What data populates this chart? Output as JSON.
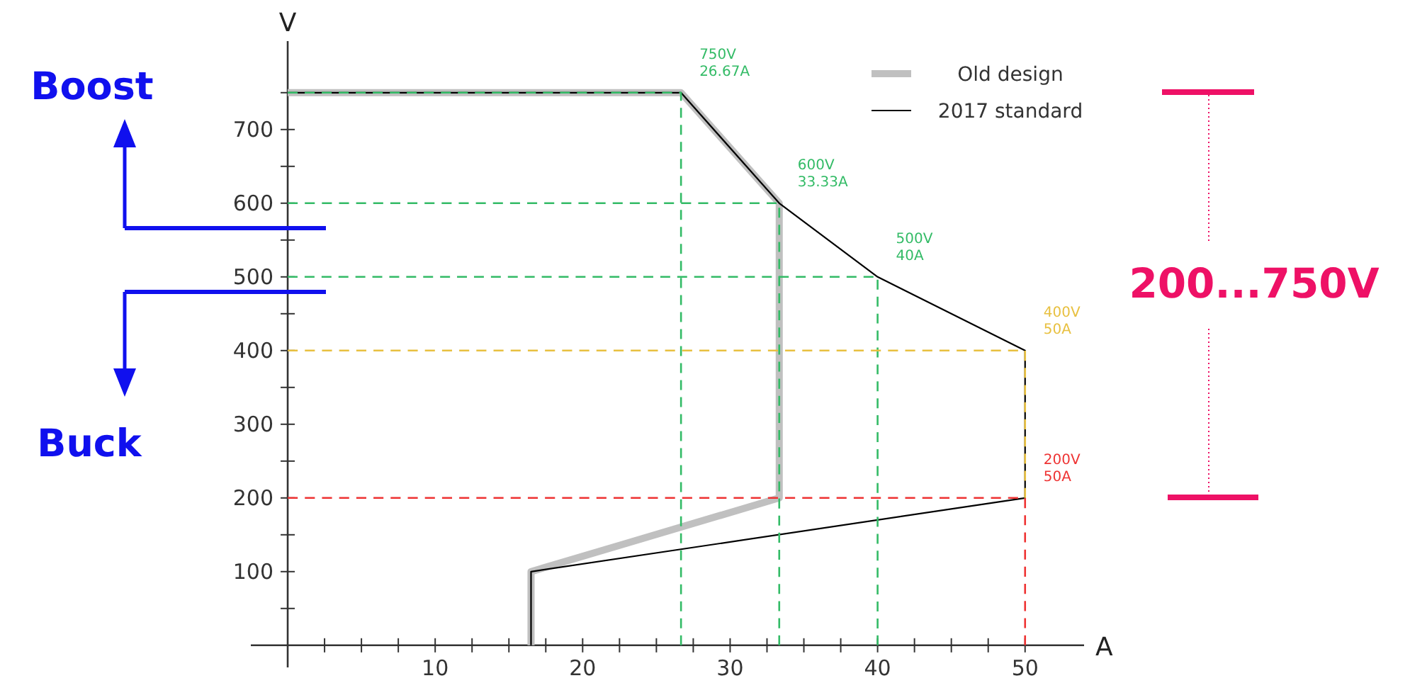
{
  "chart_data": {
    "type": "line",
    "xlabel": "A",
    "ylabel": "V",
    "xlim": [
      -2.5,
      54
    ],
    "ylim": [
      -30,
      820
    ],
    "xticks": [
      {
        "value": 2.5,
        "label": null
      },
      {
        "value": 5,
        "label": null
      },
      {
        "value": 7.5,
        "label": null
      },
      10,
      {
        "value": 12.5,
        "label": null
      },
      {
        "value": 15,
        "label": null
      },
      {
        "value": 17.5,
        "label": null
      },
      20,
      {
        "value": 22.5,
        "label": null
      },
      {
        "value": 25,
        "label": null
      },
      {
        "value": 27.5,
        "label": null
      },
      30,
      {
        "value": 32.5,
        "label": null
      },
      {
        "value": 35,
        "label": null
      },
      {
        "value": 37.5,
        "label": null
      },
      40,
      {
        "value": 42.5,
        "label": null
      },
      {
        "value": 45,
        "label": null
      },
      {
        "value": 47.5,
        "label": null
      },
      50
    ],
    "yticks": [
      {
        "value": 50,
        "label": null
      },
      100,
      {
        "value": 150,
        "label": null
      },
      200,
      {
        "value": 250,
        "label": null
      },
      300,
      {
        "value": 350,
        "label": null
      },
      400,
      {
        "value": 450,
        "label": null
      },
      500,
      {
        "value": 550,
        "label": null
      },
      600,
      {
        "value": 650,
        "label": null
      },
      700,
      {
        "value": 750,
        "label": null
      }
    ],
    "grid": false,
    "legend": "top right",
    "series": [
      {
        "name": "Old design",
        "color": "#c0c0c0",
        "x": [
          16.5,
          16.5,
          33.33,
          33.33,
          26.67,
          0
        ],
        "values": [
          0,
          100,
          200,
          600,
          750,
          750
        ]
      },
      {
        "name": "2017 standard",
        "color": "#000000",
        "x": [
          16.5,
          16.5,
          50,
          50,
          40,
          33.33,
          26.67,
          0
        ],
        "values": [
          0,
          100,
          200,
          400,
          500,
          600,
          750,
          750
        ]
      },
      {
        "color": "#33bb66",
        "line_style": "dashed",
        "x": [
          0,
          26.67,
          26.67
        ],
        "values": [
          750,
          750,
          0
        ]
      },
      {
        "color": "#33bb66",
        "line_style": "dashed",
        "x": [
          0,
          33.33,
          33.33
        ],
        "values": [
          600,
          600,
          0
        ]
      },
      {
        "color": "#33bb66",
        "line_style": "dashed",
        "x": [
          0,
          40,
          40
        ],
        "values": [
          500,
          500,
          0
        ]
      },
      {
        "color": "#e8c040",
        "line_style": "dashed",
        "x": [
          0,
          50,
          50
        ],
        "values": [
          400,
          400,
          200
        ]
      },
      {
        "color": "#ee3333",
        "line_style": "dashed",
        "x": [
          0,
          50,
          50
        ],
        "values": [
          200,
          200,
          0
        ]
      }
    ],
    "annotations": [
      {
        "text": "750V\n26.67A",
        "x": 26.67,
        "y": 750
      },
      {
        "text": "600V\n33.33A",
        "x": 33.33,
        "y": 600
      },
      {
        "text": "500V\n40A",
        "x": 40,
        "y": 500
      },
      {
        "text": "400V\n50A",
        "x": 50,
        "y": 400
      },
      {
        "text": "200V\n50A",
        "x": 50,
        "y": 200
      },
      "Boost",
      "Buck",
      "200...750V"
    ]
  }
}
